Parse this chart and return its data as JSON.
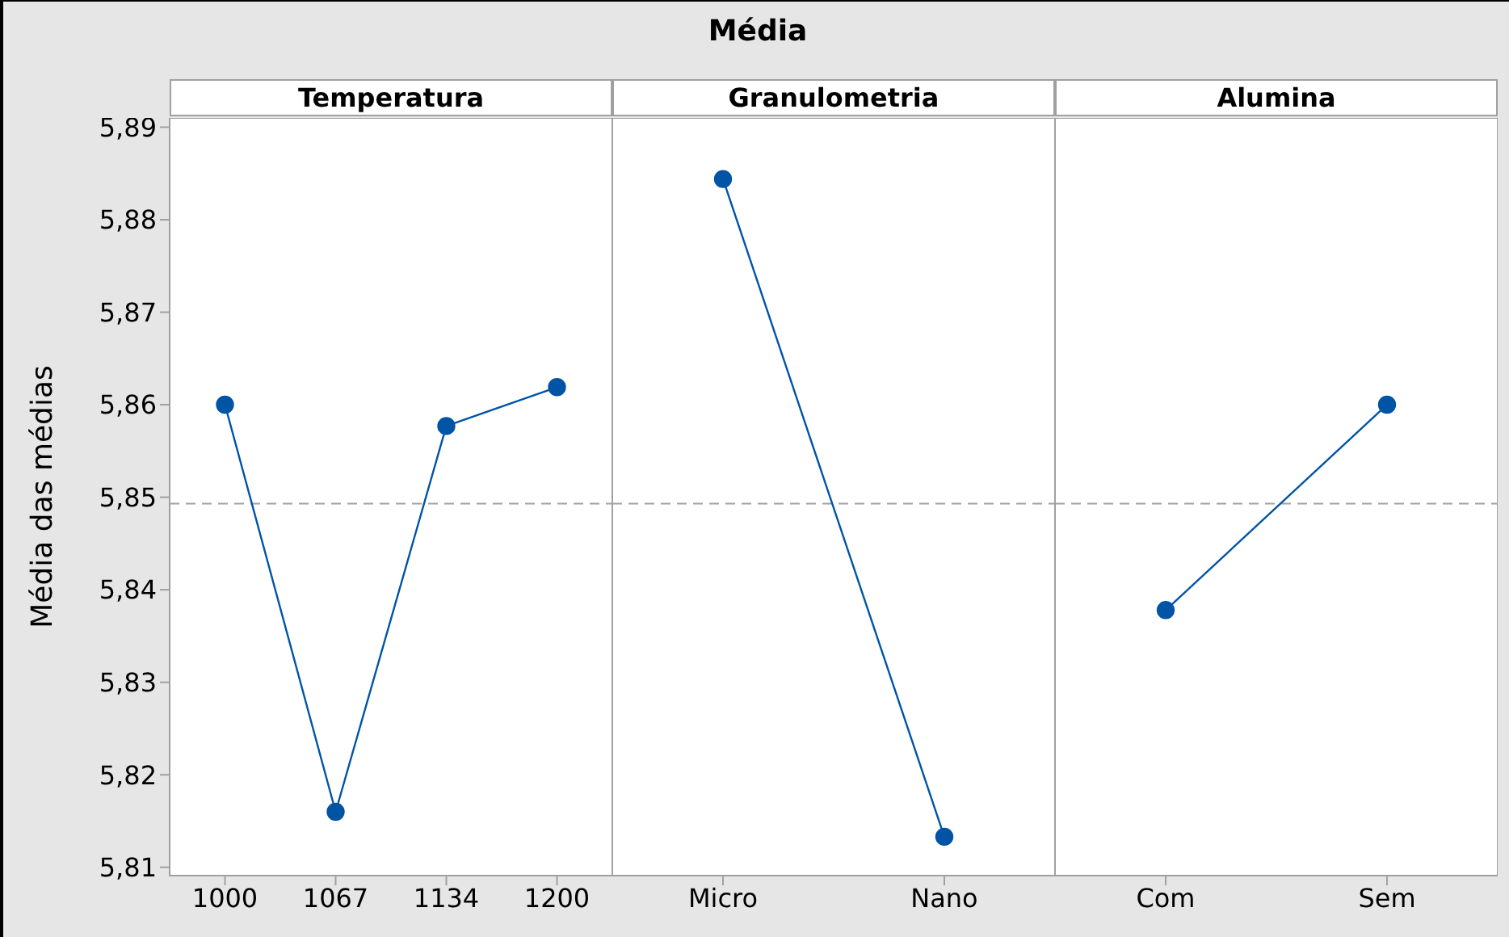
{
  "chart_data": [
    {
      "type": "line",
      "subtitle": "Temperatura",
      "ylabel": "Média das médias",
      "categories": [
        "1000",
        "1067",
        "1134",
        "1200"
      ],
      "values": [
        5.86,
        5.816,
        5.8577,
        5.8619
      ],
      "color": "#0054a6",
      "marker": "circle",
      "ylim": [
        5.8091,
        5.891
      ],
      "yticks": [
        {
          "value": 5.81,
          "label": "5,81"
        },
        {
          "value": 5.82,
          "label": "5,82"
        },
        {
          "value": 5.83,
          "label": "5,83"
        },
        {
          "value": 5.84,
          "label": "5,84"
        },
        {
          "value": 5.85,
          "label": "5,85"
        },
        {
          "value": 5.86,
          "label": "5,86"
        },
        {
          "value": 5.87,
          "label": "5,87"
        },
        {
          "value": 5.88,
          "label": "5,88"
        },
        {
          "value": 5.89,
          "label": "5,89"
        }
      ],
      "ref_lines": [
        {
          "axis": "y",
          "value": 5.8493,
          "color": "#a0a0a0",
          "line_style": "dashed"
        }
      ]
    },
    {
      "type": "line",
      "title": "Média",
      "subtitle": "Granulometria",
      "categories": [
        "Micro",
        "Nano"
      ],
      "values": [
        5.8844,
        5.8133
      ],
      "color": "#0054a6",
      "marker": "circle",
      "ylim": [
        5.8091,
        5.891
      ],
      "tick_labels": "x",
      "ref_lines": [
        {
          "axis": "y",
          "value": 5.8493,
          "color": "#a0a0a0",
          "line_style": "dashed"
        }
      ]
    },
    {
      "type": "line",
      "subtitle": "Alumina",
      "categories": [
        "Com",
        "Sem"
      ],
      "values": [
        5.8378,
        5.86
      ],
      "color": "#0054a6",
      "marker": "circle",
      "ylim": [
        5.8091,
        5.891
      ],
      "tick_labels": "x",
      "ref_lines": [
        {
          "axis": "y",
          "value": 5.8493,
          "color": "#a0a0a0",
          "line_style": "dashed"
        }
      ]
    }
  ]
}
